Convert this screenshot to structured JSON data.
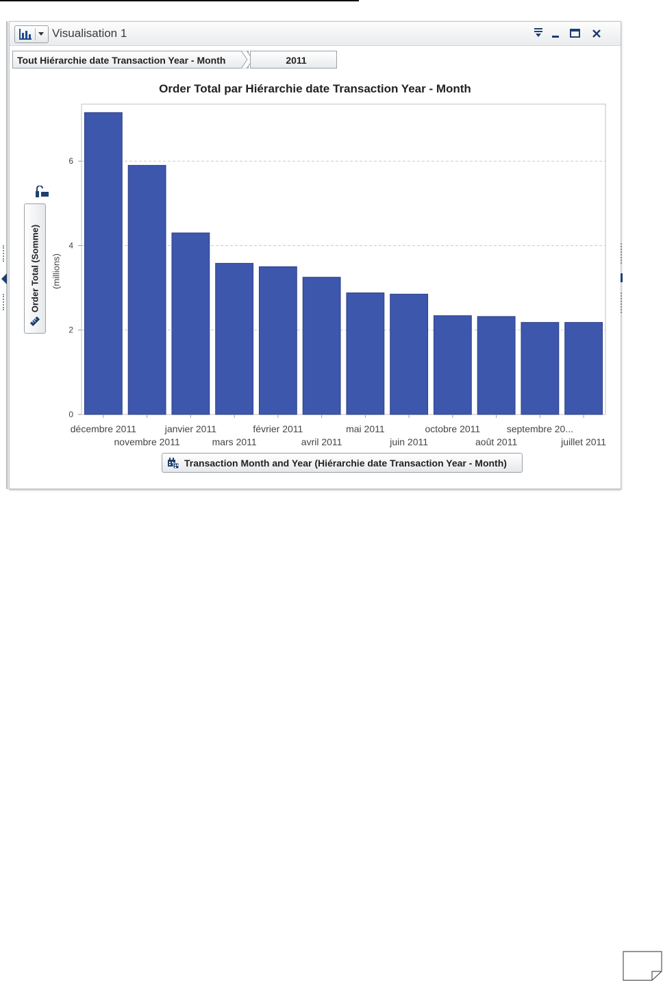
{
  "window": {
    "title": "Visualisation 1",
    "icons": [
      "bar-chart-icon",
      "dropdown-arrow-icon",
      "overflow-menu-icon",
      "minimize-icon",
      "maximize-icon",
      "close-icon"
    ]
  },
  "breadcrumb": {
    "root": "Tout Hiérarchie date Transaction Year - Month",
    "current": "2011"
  },
  "axis_buttons": {
    "y_label": "Order Total (Somme)",
    "y_units": "(millions)",
    "x_label": "Transaction Month and Year (Hiérarchie date Transaction Year - Month)"
  },
  "colors": {
    "bar": "#3d57ad",
    "bar_stroke": "#2e3f86",
    "grid": "#c9c9c9",
    "frame": "#c0c0c0"
  },
  "chart_data": {
    "type": "bar",
    "title": "Order Total par Hiérarchie date Transaction Year - Month",
    "xlabel": "Transaction Month and Year (Hiérarchie date Transaction Year - Month)",
    "ylabel": "Order Total (Somme)",
    "yunits": "(millions)",
    "categories": [
      "décembre 2011",
      "novembre 2011",
      "janvier 2011",
      "mars 2011",
      "février 2011",
      "avril 2011",
      "mai 2011",
      "juin 2011",
      "octobre 2011",
      "août 2011",
      "septembre 20...",
      "juillet 2011"
    ],
    "values": [
      7.15,
      5.9,
      4.3,
      3.58,
      3.5,
      3.25,
      2.88,
      2.85,
      2.34,
      2.32,
      2.18,
      2.18
    ],
    "ylim": [
      0,
      7.35
    ],
    "yticks": [
      0,
      2,
      4,
      6
    ],
    "grid": "horizontal dashed"
  }
}
